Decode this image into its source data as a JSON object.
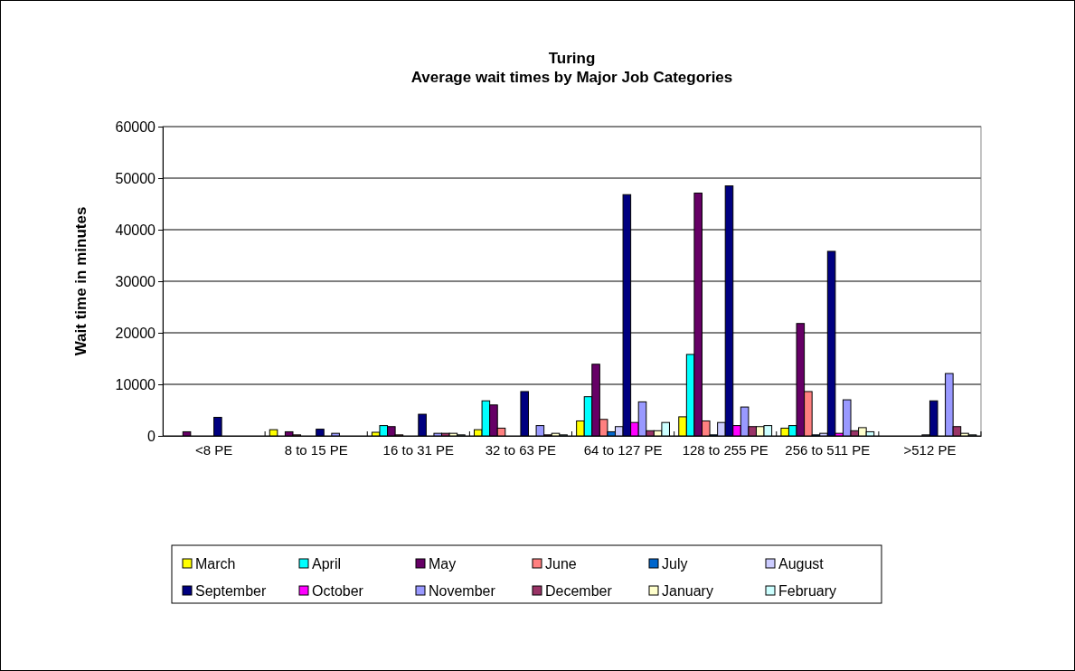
{
  "chart_data": {
    "type": "bar",
    "title": "Turing",
    "subtitle": "Average wait times by Major Job Categories",
    "ylabel": "Wait time in minutes",
    "categories": [
      "<8 PE",
      "8 to 15 PE",
      "16 to 31 PE",
      "32 to 63 PE",
      "64 to 127 PE",
      "128 to 255 PE",
      "256 to 511 PE",
      ">512 PE"
    ],
    "ylim": [
      0,
      60000
    ],
    "yticks": [
      0,
      10000,
      20000,
      30000,
      40000,
      50000,
      60000
    ],
    "grid": "y",
    "legend": "bottom",
    "series": [
      {
        "name": "March",
        "color": "#ffff00",
        "values": [
          0,
          1200,
          700,
          1200,
          2900,
          3700,
          1500,
          0
        ]
      },
      {
        "name": "April",
        "color": "#00ffff",
        "values": [
          0,
          0,
          2000,
          6800,
          7600,
          15800,
          2000,
          0
        ]
      },
      {
        "name": "May",
        "color": "#660066",
        "values": [
          800,
          800,
          1800,
          6000,
          13900,
          47100,
          21800,
          0
        ]
      },
      {
        "name": "June",
        "color": "#ff8080",
        "values": [
          0,
          200,
          200,
          1500,
          3200,
          2900,
          8600,
          0
        ]
      },
      {
        "name": "July",
        "color": "#0066cc",
        "values": [
          0,
          0,
          0,
          null,
          800,
          200,
          200,
          0
        ]
      },
      {
        "name": "August",
        "color": "#ccccff",
        "values": [
          0,
          0,
          0,
          0,
          1800,
          2600,
          500,
          200
        ]
      },
      {
        "name": "September",
        "color": "#000080",
        "values": [
          3600,
          1300,
          4200,
          8600,
          46800,
          48500,
          35800,
          6800
        ]
      },
      {
        "name": "October",
        "color": "#ff00ff",
        "values": [
          0,
          0,
          null,
          null,
          2600,
          2000,
          500,
          null
        ]
      },
      {
        "name": "November",
        "color": "#9999ff",
        "values": [
          0,
          500,
          500,
          2000,
          6600,
          5600,
          7000,
          12100
        ]
      },
      {
        "name": "December",
        "color": "#993366",
        "values": [
          0,
          0,
          500,
          200,
          1000,
          1800,
          1000,
          1800
        ]
      },
      {
        "name": "January",
        "color": "#ffffcc",
        "values": [
          0,
          0,
          500,
          500,
          1000,
          1800,
          1600,
          500
        ]
      },
      {
        "name": "February",
        "color": "#ccffff",
        "values": [
          0,
          0,
          200,
          200,
          2600,
          2000,
          800,
          200
        ]
      }
    ]
  }
}
